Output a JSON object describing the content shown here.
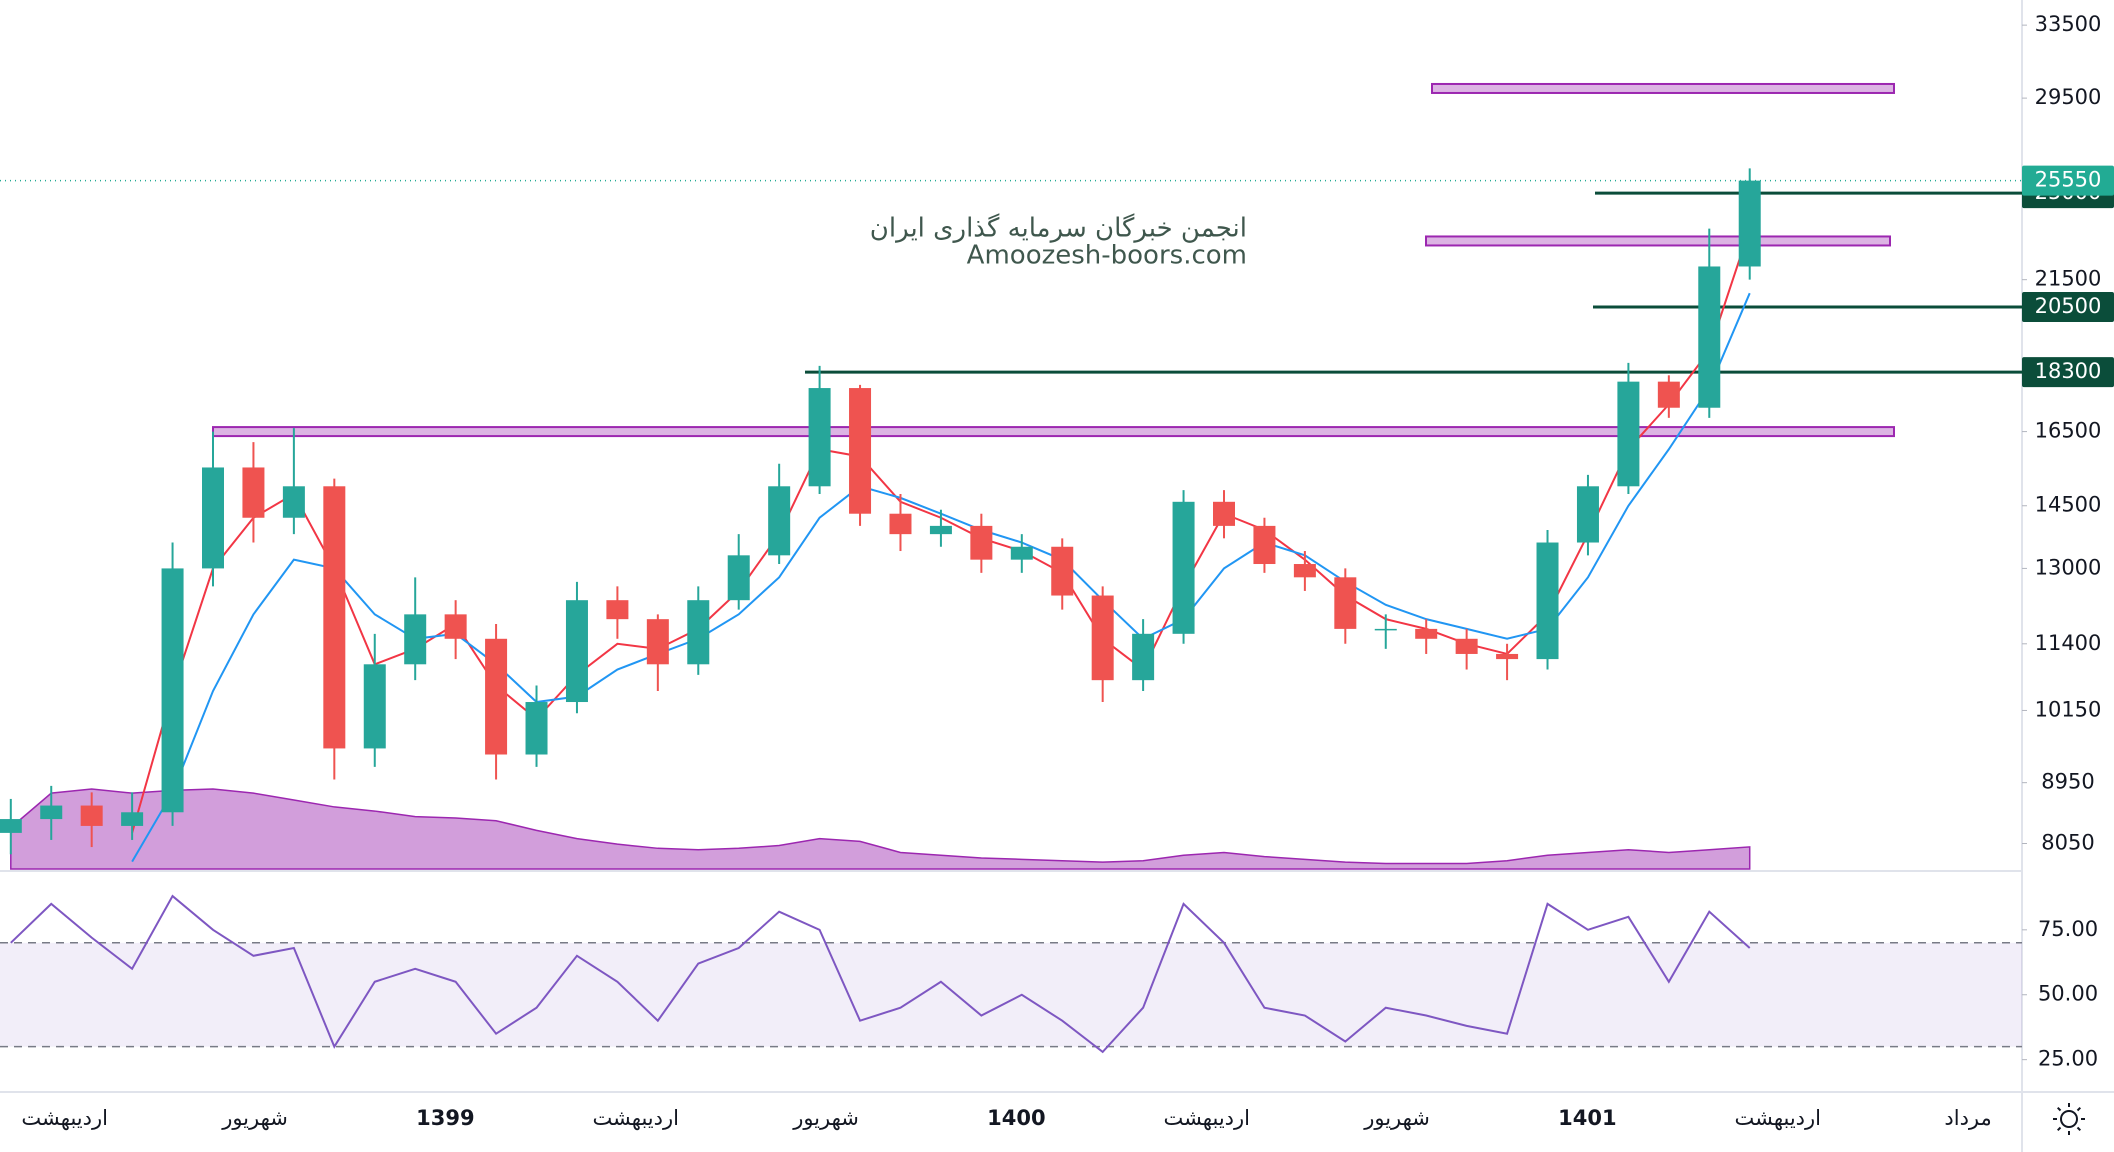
{
  "watermark": {
    "lines": [
      "انجمن خبرگان سرمایه گذاری ایران",
      "Amoozesh-boors.com"
    ]
  },
  "time_axis": {
    "labels": [
      "اردیبهشت",
      "شهریور",
      "1399",
      "اردیبهشت",
      "شهریور",
      "1400",
      "اردیبهشت",
      "شهریور",
      "1401",
      "اردیبهشت",
      "مرداد"
    ]
  },
  "chart_data": [
    {
      "type": "candlestick",
      "log_scale": true,
      "ylim": [
        7700,
        35000
      ],
      "yticks": [
        33500,
        29500,
        21500,
        16500,
        14500,
        13000,
        11400,
        10150,
        8950,
        8050
      ],
      "up_color": "#26a69a",
      "down_color": "#ef5350",
      "open": [
        8200,
        8400,
        8600,
        8300,
        8500,
        13000,
        15500,
        14200,
        15000,
        9500,
        11000,
        12000,
        11500,
        9400,
        10300,
        12300,
        11900,
        11000,
        12300,
        13300,
        15000,
        17800,
        14300,
        13800,
        14000,
        13200,
        13500,
        12400,
        10700,
        11600,
        14600,
        14000,
        13100,
        12800,
        11700,
        11700,
        11500,
        11200,
        11100,
        13600,
        15000,
        18000,
        17200,
        22000
      ],
      "high": [
        8700,
        8900,
        8800,
        8800,
        13600,
        16500,
        16200,
        16600,
        15200,
        11600,
        12800,
        12300,
        11800,
        10600,
        12700,
        12600,
        12000,
        12600,
        13800,
        15600,
        18500,
        17900,
        14800,
        14400,
        14300,
        13800,
        13700,
        12600,
        11900,
        14900,
        14900,
        14200,
        13400,
        13000,
        12000,
        11900,
        11700,
        11400,
        13900,
        15300,
        18600,
        18200,
        23500,
        26100
      ],
      "low": [
        7900,
        8100,
        8000,
        8100,
        8300,
        12600,
        13600,
        13800,
        9000,
        9200,
        10700,
        11100,
        9000,
        9200,
        10100,
        11500,
        10500,
        10800,
        12100,
        13100,
        14800,
        14000,
        13400,
        13500,
        12900,
        12900,
        12100,
        10300,
        10500,
        11400,
        13700,
        12900,
        12500,
        11400,
        11300,
        11200,
        10900,
        10700,
        10900,
        13300,
        14800,
        16900,
        16900,
        21500
      ],
      "close": [
        8400,
        8600,
        8300,
        8500,
        13000,
        15500,
        14200,
        15000,
        9500,
        11000,
        12000,
        11500,
        9400,
        10300,
        12300,
        11900,
        11000,
        12300,
        13300,
        15000,
        17800,
        14300,
        13800,
        14000,
        13200,
        13500,
        12400,
        10700,
        11600,
        14600,
        14000,
        13100,
        12800,
        11700,
        11700,
        11500,
        11200,
        11100,
        13600,
        15000,
        18000,
        17200,
        22000,
        25550
      ],
      "overlays": [
        {
          "color": "#f23645",
          "values": [
            null,
            null,
            null,
            8200,
            10500,
            13000,
            14200,
            14800,
            13000,
            11000,
            11300,
            11800,
            10600,
            10000,
            10800,
            11400,
            11300,
            11700,
            12500,
            13800,
            16000,
            15800,
            14600,
            14200,
            13700,
            13400,
            12900,
            11500,
            10900,
            12600,
            14300,
            13900,
            13200,
            12400,
            11900,
            11700,
            11400,
            11200,
            12000,
            13800,
            16000,
            17300,
            19000,
            23500
          ]
        },
        {
          "color": "#2196f3",
          "values": [
            null,
            null,
            null,
            7800,
            8800,
            10500,
            12000,
            13200,
            13000,
            12000,
            11500,
            11600,
            11000,
            10300,
            10400,
            10900,
            11200,
            11500,
            12000,
            12800,
            14200,
            15000,
            14700,
            14300,
            13900,
            13600,
            13200,
            12300,
            11500,
            11900,
            13000,
            13600,
            13300,
            12700,
            12200,
            11900,
            11700,
            11500,
            11700,
            12800,
            14500,
            16000,
            17800,
            21000
          ]
        }
      ],
      "volume": {
        "color": "#9c27b0",
        "values": [
          30,
          55,
          58,
          55,
          57,
          58,
          55,
          50,
          45,
          42,
          38,
          37,
          35,
          28,
          22,
          18,
          15,
          14,
          15,
          17,
          22,
          20,
          12,
          10,
          8,
          7,
          6,
          5,
          6,
          10,
          12,
          9,
          7,
          5,
          4,
          4,
          4,
          6,
          10,
          12,
          14,
          12,
          14,
          16
        ]
      },
      "last_price": {
        "value": 25550,
        "color": "#22ab94"
      },
      "levels": [
        {
          "value": 30000,
          "kind": "zone",
          "color": "#9c27b0"
        },
        {
          "value": 23000,
          "kind": "zone",
          "color": "#9c27b0"
        },
        {
          "value": 16500,
          "kind": "zone",
          "color": "#9c27b0"
        },
        {
          "value": 25000,
          "kind": "line",
          "color": "#0b4d3a"
        },
        {
          "value": 20500,
          "kind": "line",
          "color": "#0b4d3a"
        },
        {
          "value": 18300,
          "kind": "line",
          "color": "#0b4d3a"
        }
      ]
    },
    {
      "type": "line",
      "ylim": [
        13.7,
        96.5
      ],
      "yticks": [
        {
          "value": 75,
          "label": "75.00"
        },
        {
          "value": 50,
          "label": "50.00"
        },
        {
          "value": 25,
          "label": "25.00"
        }
      ],
      "band": [
        30,
        70
      ],
      "color": "#7e57c2",
      "values": [
        70,
        85,
        72,
        60,
        88,
        75,
        65,
        68,
        30,
        55,
        60,
        55,
        35,
        45,
        65,
        55,
        40,
        62,
        68,
        82,
        75,
        40,
        45,
        55,
        42,
        50,
        40,
        28,
        45,
        85,
        70,
        45,
        42,
        32,
        45,
        42,
        38,
        35,
        85,
        75,
        80,
        55,
        82,
        68
      ]
    }
  ]
}
